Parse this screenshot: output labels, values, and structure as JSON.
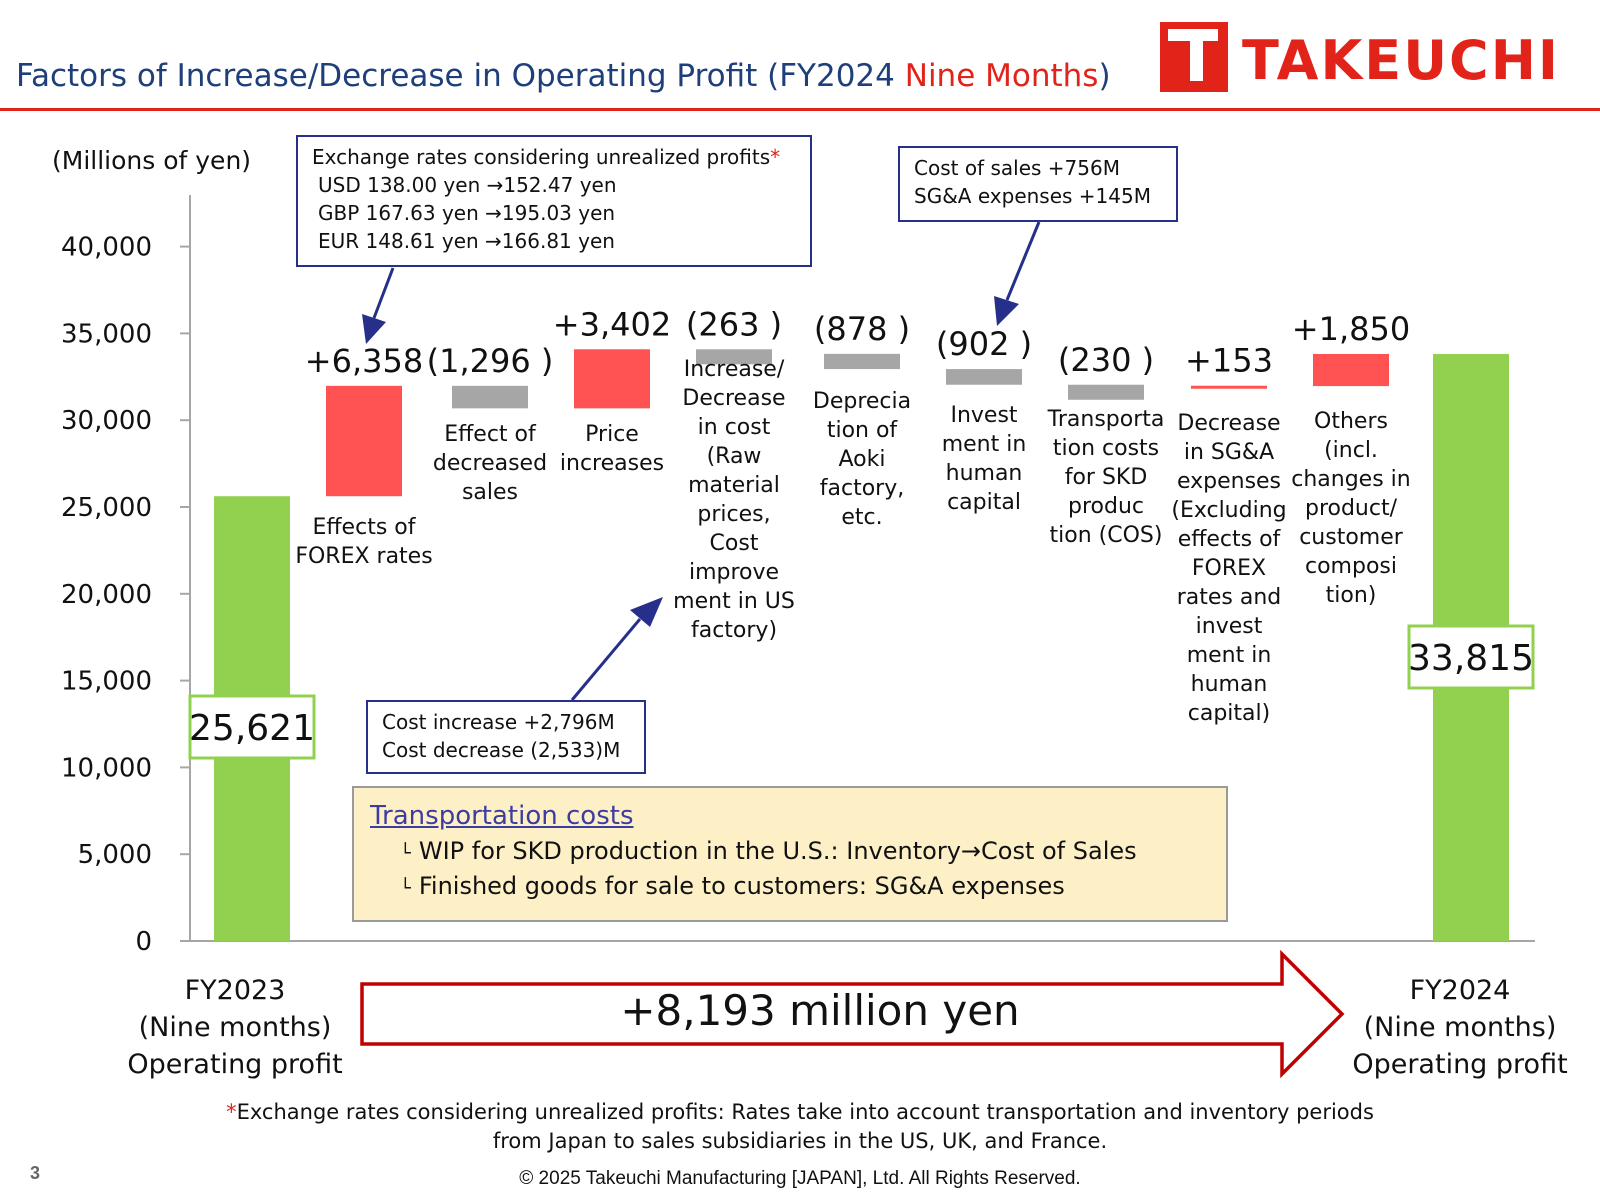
{
  "header": {
    "title_main": "Factors of Increase/Decrease in Operating Profit (FY2024 ",
    "title_highlight": "Nine Months",
    "title_end": ")",
    "logo_text": "TAKEUCHI",
    "brand_color": "#e2231a"
  },
  "chart_data": {
    "type": "bar",
    "subtype": "waterfall",
    "unit_label": "(Millions of yen)",
    "ylim": [
      0,
      40000
    ],
    "yticks": [
      "0",
      "5,000",
      "10,000",
      "15,000",
      "20,000",
      "25,000",
      "30,000",
      "35,000",
      "40,000"
    ],
    "ytick_values": [
      0,
      5000,
      10000,
      15000,
      20000,
      25000,
      30000,
      35000,
      40000
    ],
    "bars": [
      {
        "kind": "total",
        "value": 25621,
        "value_label": "25,621",
        "label": ""
      },
      {
        "kind": "delta",
        "value": 6358,
        "value_label": "+6,358",
        "label": "Effects of FOREX rates",
        "color": "#ff5252"
      },
      {
        "kind": "delta",
        "value": -1296,
        "value_label": "(1,296 )",
        "label": "Effect of decreased sales",
        "color": "#a6a6a6"
      },
      {
        "kind": "delta",
        "value": 3402,
        "value_label": "+3,402",
        "label": "Price increases",
        "color": "#ff5252"
      },
      {
        "kind": "delta",
        "value": -263,
        "value_label": "(263 )",
        "label": "Increase/ Decrease in cost (Raw material prices, Cost improve ment in US factory)",
        "color": "#a6a6a6"
      },
      {
        "kind": "delta",
        "value": -878,
        "value_label": "(878 )",
        "label": "Deprecia tion of Aoki factory, etc.",
        "color": "#a6a6a6"
      },
      {
        "kind": "delta",
        "value": -902,
        "value_label": "(902 )",
        "label": "Invest ment in human capital",
        "color": "#a6a6a6"
      },
      {
        "kind": "delta",
        "value": -230,
        "value_label": "(230 )",
        "label": "Transporta tion costs for SKD produc tion (COS)",
        "color": "#a6a6a6"
      },
      {
        "kind": "delta",
        "value": 153,
        "value_label": "+153",
        "label": "Decrease in SG&A expenses (Excluding effects of FOREX rates and invest ment in human capital)",
        "color": "#ff5252"
      },
      {
        "kind": "delta",
        "value": 1850,
        "value_label": "+1,850",
        "label": "Others (incl. changes in product/ customer composi tion)",
        "color": "#ff5252"
      },
      {
        "kind": "total",
        "value": 33815,
        "value_label": "33,815",
        "label": ""
      }
    ],
    "colors": {
      "total": "#92d050",
      "increase": "#ff5252",
      "decrease": "#a6a6a6"
    },
    "grid": false,
    "legend": "none"
  },
  "endpoints": {
    "left": [
      "FY2023",
      "(Nine months)",
      "Operating profit"
    ],
    "right": [
      "FY2024",
      "(Nine months)",
      "Operating profit"
    ],
    "delta_label": "+8,193 million yen"
  },
  "callouts": {
    "fx": {
      "title": "Exchange rates considering unrealized profits",
      "star": "*",
      "lines": [
        "USD 138.00 yen →152.47 yen",
        "GBP 167.63 yen →195.03 yen",
        "EUR 148.61 yen →166.81 yen"
      ]
    },
    "cost": {
      "lines": [
        "Cost increase +2,796M",
        "Cost decrease (2,533)M"
      ]
    },
    "cogs": {
      "lines": [
        "Cost of sales +756M",
        "SG&A expenses +145M"
      ]
    },
    "transport": {
      "title": "Transportation costs",
      "hook": "└",
      "lines": [
        "WIP for SKD production in the U.S.: Inventory→Cost of Sales",
        "Finished goods for sale to customers: SG&A expenses"
      ]
    }
  },
  "footer": {
    "footnote_star": "*",
    "footnote_line1": "Exchange rates considering unrealized profits: Rates take into account transportation and inventory periods",
    "footnote_line2": "from Japan to sales subsidiaries in the US, UK, and France.",
    "copyright": "© 2025 Takeuchi Manufacturing [JAPAN], Ltd. All Rights Reserved.",
    "page_number": "3"
  }
}
